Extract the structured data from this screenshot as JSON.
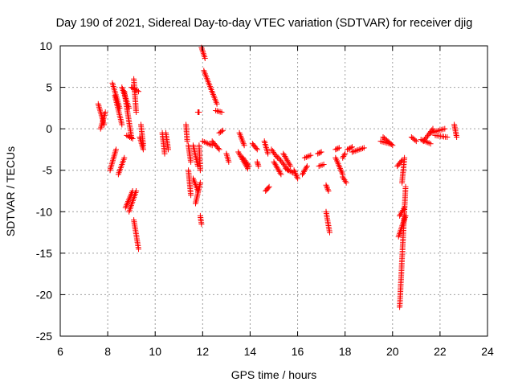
{
  "chart_data": {
    "type": "scatter",
    "title": "Day 190 of 2021, Sidereal Day-to-day VTEC variation (SDTVAR) for receiver djig",
    "xlabel": "GPS time / hours",
    "ylabel": "SDTVAR / TECUs",
    "xlim": [
      6,
      24
    ],
    "ylim": [
      -25,
      10
    ],
    "xticks": [
      "6",
      "8",
      "10",
      "12",
      "14",
      "16",
      "18",
      "20",
      "22",
      "24"
    ],
    "yticks": [
      "10",
      "5",
      "0",
      "-5",
      "-10",
      "-15",
      "-20",
      "-25"
    ],
    "grid": true,
    "marker": "+",
    "color": "#ff0000",
    "arcs": [
      [
        7.6,
        3.0,
        7.85,
        0.5
      ],
      [
        7.7,
        0.0,
        7.9,
        2.0
      ],
      [
        8.1,
        -5.0,
        8.35,
        -2.5
      ],
      [
        8.2,
        5.5,
        8.5,
        2.5
      ],
      [
        8.3,
        4.0,
        8.6,
        0.5
      ],
      [
        8.45,
        -5.5,
        8.7,
        -3.5
      ],
      [
        8.6,
        5.0,
        8.9,
        2.5
      ],
      [
        8.7,
        4.5,
        9.0,
        -1.0
      ],
      [
        8.75,
        -9.5,
        9.05,
        -7.5
      ],
      [
        8.8,
        -0.8,
        9.05,
        -1.2
      ],
      [
        8.9,
        -10.0,
        9.2,
        -7.5
      ],
      [
        9.0,
        5.0,
        9.3,
        4.5
      ],
      [
        9.1,
        6.0,
        9.2,
        2.0
      ],
      [
        9.1,
        -11.0,
        9.3,
        -14.5
      ],
      [
        9.35,
        -1.0,
        9.5,
        -2.5
      ],
      [
        9.4,
        0.5,
        9.5,
        -2.0
      ],
      [
        10.3,
        -0.5,
        10.4,
        -3.0
      ],
      [
        10.45,
        -0.5,
        10.55,
        -2.5
      ],
      [
        11.3,
        0.5,
        11.35,
        -1.5
      ],
      [
        11.4,
        -2.0,
        11.5,
        -4.0
      ],
      [
        11.4,
        -5.0,
        11.5,
        -8.0
      ],
      [
        11.6,
        -2.0,
        11.8,
        -4.5
      ],
      [
        11.6,
        -6.0,
        11.8,
        -7.5
      ],
      [
        11.7,
        -9.0,
        11.9,
        -6.5
      ],
      [
        11.8,
        2.0,
        11.85,
        2.0
      ],
      [
        11.85,
        -2.0,
        11.9,
        -5.0
      ],
      [
        11.9,
        -10.5,
        11.95,
        -11.5
      ],
      [
        11.95,
        9.8,
        12.1,
        8.5
      ],
      [
        12.0,
        -1.5,
        12.4,
        -2.0
      ],
      [
        12.05,
        7.0,
        12.6,
        3.0
      ],
      [
        12.4,
        -1.5,
        12.7,
        -2.5
      ],
      [
        12.55,
        2.2,
        12.8,
        2.0
      ],
      [
        12.7,
        -0.5,
        12.85,
        -0.2
      ],
      [
        13.0,
        -3.0,
        13.1,
        -4.0
      ],
      [
        13.55,
        -0.5,
        13.75,
        -2.0
      ],
      [
        13.5,
        -2.8,
        13.9,
        -4.8
      ],
      [
        13.7,
        -3.5,
        13.95,
        -4.5
      ],
      [
        14.1,
        -1.8,
        14.3,
        -2.5
      ],
      [
        14.3,
        -4.0,
        14.35,
        -4.5
      ],
      [
        14.6,
        -1.5,
        14.75,
        -3.0
      ],
      [
        14.65,
        -7.5,
        14.8,
        -7.0
      ],
      [
        14.9,
        -2.5,
        15.15,
        -3.5
      ],
      [
        15.0,
        -4.0,
        15.3,
        -5.5
      ],
      [
        15.2,
        -3.5,
        15.6,
        -5.0
      ],
      [
        15.4,
        -3.0,
        15.7,
        -4.5
      ],
      [
        15.5,
        -4.8,
        15.8,
        -5.3
      ],
      [
        15.85,
        -5.0,
        16.0,
        -6.0
      ],
      [
        16.2,
        -5.5,
        16.4,
        -4.5
      ],
      [
        16.3,
        -3.5,
        16.55,
        -3.2
      ],
      [
        16.85,
        -3.0,
        17.0,
        -2.8
      ],
      [
        16.9,
        -4.5,
        17.1,
        -4.3
      ],
      [
        17.2,
        -6.8,
        17.3,
        -7.5
      ],
      [
        17.2,
        -10.0,
        17.35,
        -12.5
      ],
      [
        17.6,
        -2.5,
        17.75,
        -2.3
      ],
      [
        17.6,
        -3.5,
        17.9,
        -5.5
      ],
      [
        17.9,
        -3.5,
        18.0,
        -3.0
      ],
      [
        17.9,
        -5.8,
        18.05,
        -6.5
      ],
      [
        18.1,
        -2.5,
        18.3,
        -2.2
      ],
      [
        18.3,
        -2.8,
        18.8,
        -2.3
      ],
      [
        19.5,
        -1.5,
        19.9,
        -1.8
      ],
      [
        19.6,
        -1.0,
        20.0,
        -2.0
      ],
      [
        20.2,
        -4.5,
        20.4,
        -3.8
      ],
      [
        20.3,
        -10.5,
        20.5,
        -9.5
      ],
      [
        20.25,
        -13.0,
        20.55,
        -10.5
      ],
      [
        20.3,
        -21.5,
        20.55,
        -7.0
      ],
      [
        20.4,
        -6.5,
        20.5,
        -3.5
      ],
      [
        20.8,
        -1.0,
        21.0,
        -1.5
      ],
      [
        21.2,
        -1.3,
        21.6,
        -1.8
      ],
      [
        21.3,
        -1.5,
        21.7,
        0.0
      ],
      [
        21.6,
        -0.5,
        22.2,
        0.0
      ],
      [
        21.8,
        -0.8,
        22.3,
        -1.0
      ],
      [
        22.6,
        0.5,
        22.7,
        -1.0
      ]
    ]
  }
}
